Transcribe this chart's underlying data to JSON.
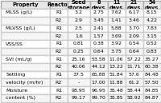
{
  "title": "",
  "columns": [
    "Property",
    "Reactor",
    "Seed\nstorage",
    "8\ndays",
    "11\ndays",
    "21\ndays",
    "54\ndays"
  ],
  "rows": [
    [
      "MLSS (g/L)",
      "R1",
      "3.2",
      "2.75",
      "7.62",
      "6.17",
      "8.15"
    ],
    [
      "",
      "R2",
      "2.9",
      "3.45",
      "1.41",
      "3.46",
      "4.22"
    ],
    [
      "MLVSS (g/L)",
      "R1",
      "2.5",
      "2.41",
      "5.88",
      "3.70",
      "7.83"
    ],
    [
      "",
      "R2",
      "1.6",
      "1.57",
      "3.69",
      "2.09",
      "3.15"
    ],
    [
      "VSS/SS",
      "R1",
      "0.81",
      "0.38",
      "3.92",
      "0.54",
      "0.52"
    ],
    [
      "",
      "R2",
      "0.25",
      "0.64",
      "3.75",
      "0.64",
      "0.83"
    ],
    [
      "SVI (mL/g)",
      "R1",
      "25.16",
      "53.58",
      "11.06",
      "57.22",
      "35.27"
    ],
    [
      "",
      "R2",
      "40.06",
      "44.12",
      "13.22",
      "11.71",
      "60.38"
    ],
    [
      "Settling",
      "R1",
      "37.5",
      "65.88",
      "51.84",
      "57.6",
      "84.48"
    ],
    [
      "velocity (m/hr)",
      "R2",
      "-",
      "17.00",
      "11.88",
      "61.2",
      "57.50"
    ],
    [
      "Moisture",
      "R1",
      "98.95",
      "96.95",
      "35.48",
      "58.44",
      "84.85"
    ],
    [
      "content (%)",
      "R2",
      "99.17",
      "99.70",
      "35.85",
      "58.92",
      "84.87"
    ]
  ],
  "header_bg": "#e8e8e8",
  "row_bg_odd": "#ffffff",
  "row_bg_even": "#f5f5f5",
  "font_size": 4.5,
  "header_font_size": 4.8
}
